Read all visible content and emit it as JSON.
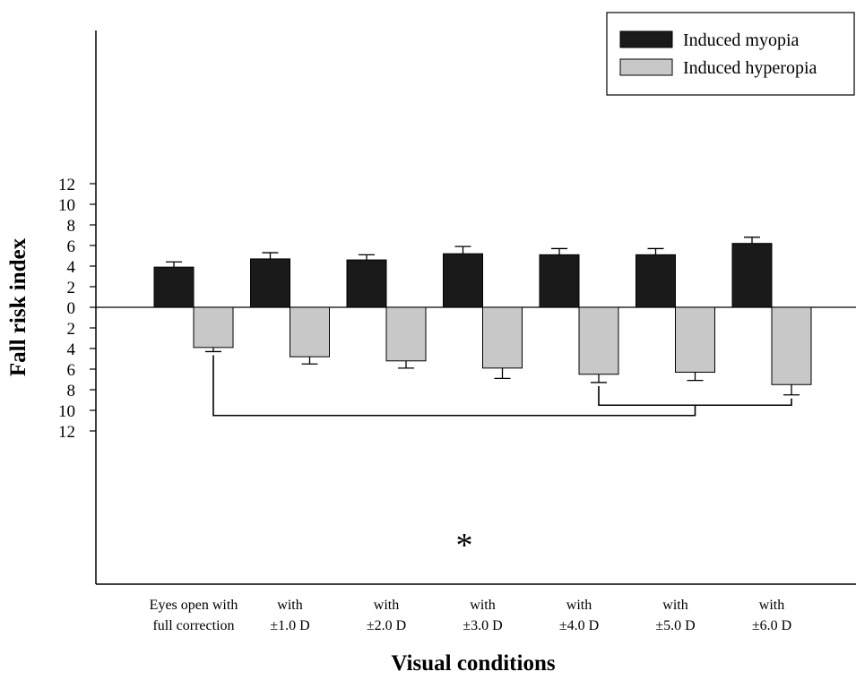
{
  "chart_data": {
    "type": "bar",
    "layout": "mirrored",
    "title": "",
    "xlabel": "Visual conditions",
    "ylabel": "Fall risk index",
    "ylim": [
      -13.5,
      13.5
    ],
    "yticks": [
      12,
      10,
      8,
      6,
      4,
      2,
      0,
      2,
      4,
      6,
      8,
      10,
      12
    ],
    "yticks_values": [
      12,
      10,
      8,
      6,
      4,
      2,
      0,
      -2,
      -4,
      -6,
      -8,
      -10,
      -12
    ],
    "categories": [
      [
        "Eyes open with",
        "full correction"
      ],
      [
        "with",
        "±1.0 D"
      ],
      [
        "with",
        "±2.0 D"
      ],
      [
        "with",
        "±3.0 D"
      ],
      [
        "with",
        "±4.0 D"
      ],
      [
        "with",
        "±5.0 D"
      ],
      [
        "with",
        "±6.0 D"
      ]
    ],
    "series": [
      {
        "name": "Induced myopia",
        "color": "#1a1a1a",
        "direction": "up",
        "values": [
          3.9,
          4.7,
          4.6,
          5.2,
          5.1,
          5.1,
          6.2
        ],
        "errors": [
          0.5,
          0.6,
          0.5,
          0.7,
          0.6,
          0.6,
          0.6
        ]
      },
      {
        "name": "Induced hyperopia",
        "color": "#c8c8c8",
        "direction": "down",
        "values": [
          3.9,
          4.8,
          5.2,
          5.9,
          6.5,
          6.3,
          7.5
        ],
        "errors": [
          0.4,
          0.7,
          0.7,
          1.0,
          0.8,
          0.8,
          1.0
        ]
      }
    ],
    "legend": {
      "position": "top-right",
      "entries": [
        "Induced myopia",
        "Induced hyperopia"
      ]
    },
    "significance": {
      "marker": "*",
      "comparisons": [
        {
          "from": "with ±4.0 D",
          "to": "with ±6.0 D",
          "level": 9.5
        },
        {
          "from": "Eyes open with full correction",
          "to": "bracket ±4.0–±6.0 D",
          "level": 10.5
        }
      ]
    }
  }
}
